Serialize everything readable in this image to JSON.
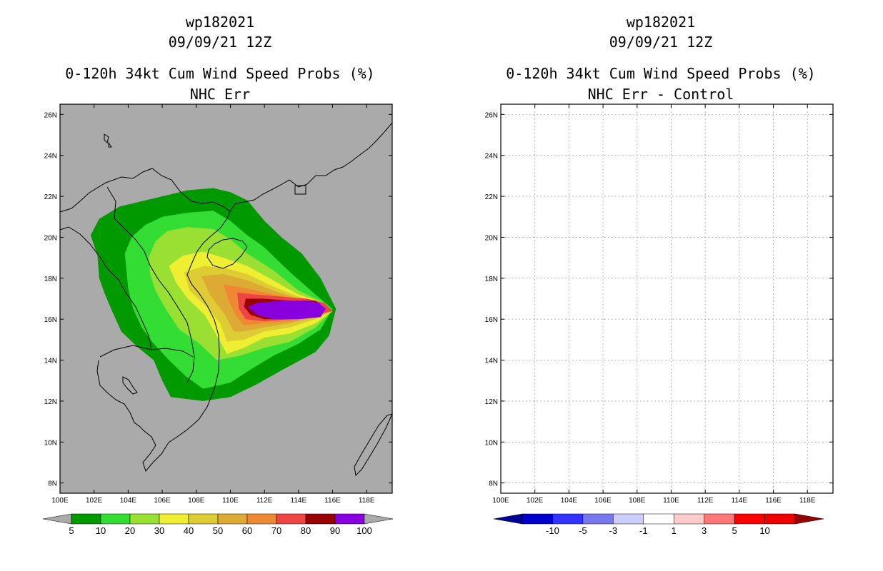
{
  "chart_data": [
    {
      "type": "filled-contour-map",
      "title_lines": [
        "wp182021",
        "09/09/21 12Z",
        "0-120h 34kt Cum Wind Speed Probs (%)",
        "NHC Err"
      ],
      "xlabel": "",
      "ylabel": "",
      "x_ticks": [
        "100E",
        "102E",
        "104E",
        "106E",
        "108E",
        "110E",
        "112E",
        "114E",
        "116E",
        "118E"
      ],
      "y_ticks": [
        "8N",
        "10N",
        "12N",
        "14N",
        "16N",
        "18N",
        "20N",
        "22N",
        "24N",
        "26N"
      ],
      "xlim": [
        100,
        119.5
      ],
      "ylim": [
        7.5,
        26.5
      ],
      "background_color": "#aaaaaa",
      "colorbar": {
        "labels": [
          "5",
          "10",
          "20",
          "30",
          "40",
          "50",
          "60",
          "70",
          "80",
          "90",
          "100"
        ],
        "colors": [
          "#009900",
          "#33dd33",
          "#99e033",
          "#eeee33",
          "#ddcc33",
          "#ddaa33",
          "#ee8833",
          "#ee4444",
          "#990000",
          "#8800dd"
        ],
        "end_color": "#aaaaaa"
      },
      "contours": [
        {
          "level": "5",
          "color": "#009900",
          "points": [
            [
              101.8,
              20.1
            ],
            [
              102.3,
              20.9
            ],
            [
              103.5,
              21.5
            ],
            [
              105.0,
              21.8
            ],
            [
              106.5,
              22.1
            ],
            [
              107.5,
              22.3
            ],
            [
              109.0,
              22.4
            ],
            [
              110.0,
              22.2
            ],
            [
              111.0,
              21.8
            ],
            [
              112.0,
              20.8
            ],
            [
              113.0,
              20.0
            ],
            [
              114.2,
              19.2
            ],
            [
              115.3,
              18.0
            ],
            [
              116.2,
              16.5
            ],
            [
              115.8,
              15.2
            ],
            [
              115.0,
              14.4
            ],
            [
              113.0,
              13.5
            ],
            [
              111.5,
              12.8
            ],
            [
              110.0,
              12.2
            ],
            [
              108.4,
              12.0
            ],
            [
              106.5,
              12.2
            ],
            [
              106.0,
              13.0
            ],
            [
              105.5,
              14.0
            ],
            [
              104.6,
              14.6
            ],
            [
              103.6,
              15.4
            ],
            [
              103.0,
              16.5
            ],
            [
              102.6,
              17.3
            ],
            [
              102.3,
              18.0
            ],
            [
              102.2,
              19.1
            ]
          ]
        },
        {
          "level": "10",
          "color": "#33dd33",
          "points": [
            [
              103.8,
              19.2
            ],
            [
              104.2,
              20.0
            ],
            [
              105.0,
              20.6
            ],
            [
              106.0,
              21.0
            ],
            [
              107.5,
              21.2
            ],
            [
              109.0,
              21.3
            ],
            [
              110.0,
              20.8
            ],
            [
              111.0,
              20.1
            ],
            [
              112.0,
              19.5
            ],
            [
              113.5,
              18.3
            ],
            [
              115.0,
              17.2
            ],
            [
              116.0,
              16.5
            ],
            [
              115.3,
              15.5
            ],
            [
              114.0,
              14.8
            ],
            [
              112.5,
              14.2
            ],
            [
              111.3,
              13.6
            ],
            [
              110.0,
              12.9
            ],
            [
              108.4,
              12.6
            ],
            [
              107.4,
              13.2
            ],
            [
              106.4,
              14.0
            ],
            [
              105.5,
              14.8
            ],
            [
              104.8,
              15.6
            ],
            [
              104.3,
              16.5
            ],
            [
              104.0,
              17.5
            ],
            [
              103.9,
              18.4
            ]
          ]
        },
        {
          "level": "20",
          "color": "#99e033",
          "points": [
            [
              105.2,
              19.0
            ],
            [
              105.6,
              19.8
            ],
            [
              106.3,
              20.3
            ],
            [
              107.5,
              20.5
            ],
            [
              109.0,
              20.4
            ],
            [
              110.0,
              19.9
            ],
            [
              111.0,
              19.2
            ],
            [
              112.5,
              18.4
            ],
            [
              114.0,
              17.4
            ],
            [
              115.5,
              16.8
            ],
            [
              116.0,
              16.4
            ],
            [
              115.0,
              15.6
            ],
            [
              113.5,
              14.9
            ],
            [
              112.0,
              14.6
            ],
            [
              110.5,
              14.2
            ],
            [
              109.2,
              14.0
            ],
            [
              108.2,
              14.8
            ],
            [
              107.0,
              15.5
            ],
            [
              106.2,
              16.5
            ],
            [
              105.6,
              17.4
            ],
            [
              105.3,
              18.2
            ]
          ]
        },
        {
          "level": "30",
          "color": "#eeee33",
          "points": [
            [
              106.4,
              18.6
            ],
            [
              107.2,
              19.1
            ],
            [
              108.4,
              19.3
            ],
            [
              109.6,
              19.0
            ],
            [
              111.0,
              18.6
            ],
            [
              112.5,
              17.9
            ],
            [
              114.0,
              17.2
            ],
            [
              115.5,
              16.8
            ],
            [
              116.0,
              16.4
            ],
            [
              115.0,
              15.8
            ],
            [
              113.5,
              15.3
            ],
            [
              112.0,
              15.1
            ],
            [
              110.8,
              14.6
            ],
            [
              109.8,
              14.3
            ],
            [
              109.2,
              15.2
            ],
            [
              108.5,
              16.2
            ],
            [
              107.5,
              17.0
            ],
            [
              106.8,
              17.8
            ]
          ]
        },
        {
          "level": "40",
          "color": "#ddcc33",
          "points": [
            [
              107.3,
              18.3
            ],
            [
              108.5,
              18.6
            ],
            [
              109.7,
              18.5
            ],
            [
              111.0,
              18.2
            ],
            [
              112.5,
              17.6
            ],
            [
              114.0,
              17.1
            ],
            [
              115.5,
              16.8
            ],
            [
              116.0,
              16.4
            ],
            [
              115.0,
              16.0
            ],
            [
              113.5,
              15.6
            ],
            [
              112.0,
              15.4
            ],
            [
              110.8,
              15.0
            ],
            [
              109.8,
              14.9
            ],
            [
              109.4,
              15.8
            ],
            [
              108.6,
              16.6
            ],
            [
              107.6,
              17.4
            ]
          ]
        },
        {
          "level": "50",
          "color": "#ddaa33",
          "points": [
            [
              108.3,
              18.1
            ],
            [
              109.6,
              18.2
            ],
            [
              111.0,
              17.9
            ],
            [
              112.5,
              17.4
            ],
            [
              114.0,
              17.0
            ],
            [
              115.5,
              16.8
            ],
            [
              116.0,
              16.4
            ],
            [
              115.0,
              16.1
            ],
            [
              113.5,
              15.8
            ],
            [
              112.0,
              15.6
            ],
            [
              110.8,
              15.4
            ],
            [
              110.2,
              15.4
            ],
            [
              109.7,
              16.2
            ],
            [
              108.8,
              17.2
            ]
          ]
        },
        {
          "level": "60",
          "color": "#ee8833",
          "points": [
            [
              109.6,
              17.7
            ],
            [
              111.0,
              17.5
            ],
            [
              112.5,
              17.2
            ],
            [
              114.0,
              17.0
            ],
            [
              115.5,
              16.8
            ],
            [
              116.0,
              16.4
            ],
            [
              115.0,
              16.2
            ],
            [
              113.5,
              15.9
            ],
            [
              112.0,
              15.8
            ],
            [
              110.8,
              15.7
            ],
            [
              110.3,
              16.2
            ],
            [
              109.9,
              16.9
            ]
          ]
        },
        {
          "level": "70",
          "color": "#ee4444",
          "points": [
            [
              110.4,
              17.3
            ],
            [
              111.5,
              17.2
            ],
            [
              113.0,
              17.1
            ],
            [
              114.5,
              17.0
            ],
            [
              115.5,
              16.8
            ],
            [
              116.0,
              16.4
            ],
            [
              115.0,
              16.2
            ],
            [
              113.5,
              16.0
            ],
            [
              112.0,
              15.9
            ],
            [
              110.9,
              16.0
            ],
            [
              110.5,
              16.5
            ]
          ]
        },
        {
          "level": "80",
          "color": "#990000",
          "points": [
            [
              110.9,
              17.0
            ],
            [
              112.0,
              17.0
            ],
            [
              113.5,
              16.9
            ],
            [
              115.0,
              16.9
            ],
            [
              115.6,
              16.5
            ],
            [
              115.0,
              16.1
            ],
            [
              113.5,
              16.0
            ],
            [
              112.0,
              16.0
            ],
            [
              111.2,
              16.2
            ],
            [
              110.8,
              16.6
            ]
          ]
        },
        {
          "level": "90",
          "color": "#8800dd",
          "points": [
            [
              111.0,
              16.6
            ],
            [
              111.6,
              16.8
            ],
            [
              113.0,
              16.9
            ],
            [
              114.5,
              16.9
            ],
            [
              115.2,
              16.8
            ],
            [
              115.6,
              16.5
            ],
            [
              115.3,
              16.1
            ],
            [
              114.0,
              16.0
            ],
            [
              112.5,
              16.0
            ],
            [
              111.6,
              16.2
            ]
          ]
        }
      ]
    },
    {
      "type": "filled-contour-map",
      "title_lines": [
        "wp182021",
        "09/09/21 12Z",
        "0-120h 34kt Cum Wind Speed Probs (%)",
        "NHC Err - Control"
      ],
      "xlabel": "",
      "ylabel": "",
      "x_ticks": [
        "100E",
        "102E",
        "104E",
        "106E",
        "108E",
        "110E",
        "112E",
        "114E",
        "116E",
        "118E"
      ],
      "y_ticks": [
        "8N",
        "10N",
        "12N",
        "14N",
        "16N",
        "18N",
        "20N",
        "22N",
        "24N",
        "26N"
      ],
      "xlim": [
        100,
        119.5
      ],
      "ylim": [
        7.5,
        26.5
      ],
      "grid": true,
      "background_color": "#ffffff",
      "colorbar": {
        "labels": [
          "-10",
          "-5",
          "-3",
          "-1",
          "1",
          "3",
          "5",
          "10"
        ],
        "colors": [
          "#0000cc",
          "#3333ff",
          "#7777ee",
          "#ccccff",
          "#ffffff",
          "#ffcccc",
          "#ff7777",
          "#ff0000",
          "#ee0000"
        ],
        "end_left_color": "#000099",
        "end_right_color": "#990000"
      },
      "contours": []
    }
  ]
}
